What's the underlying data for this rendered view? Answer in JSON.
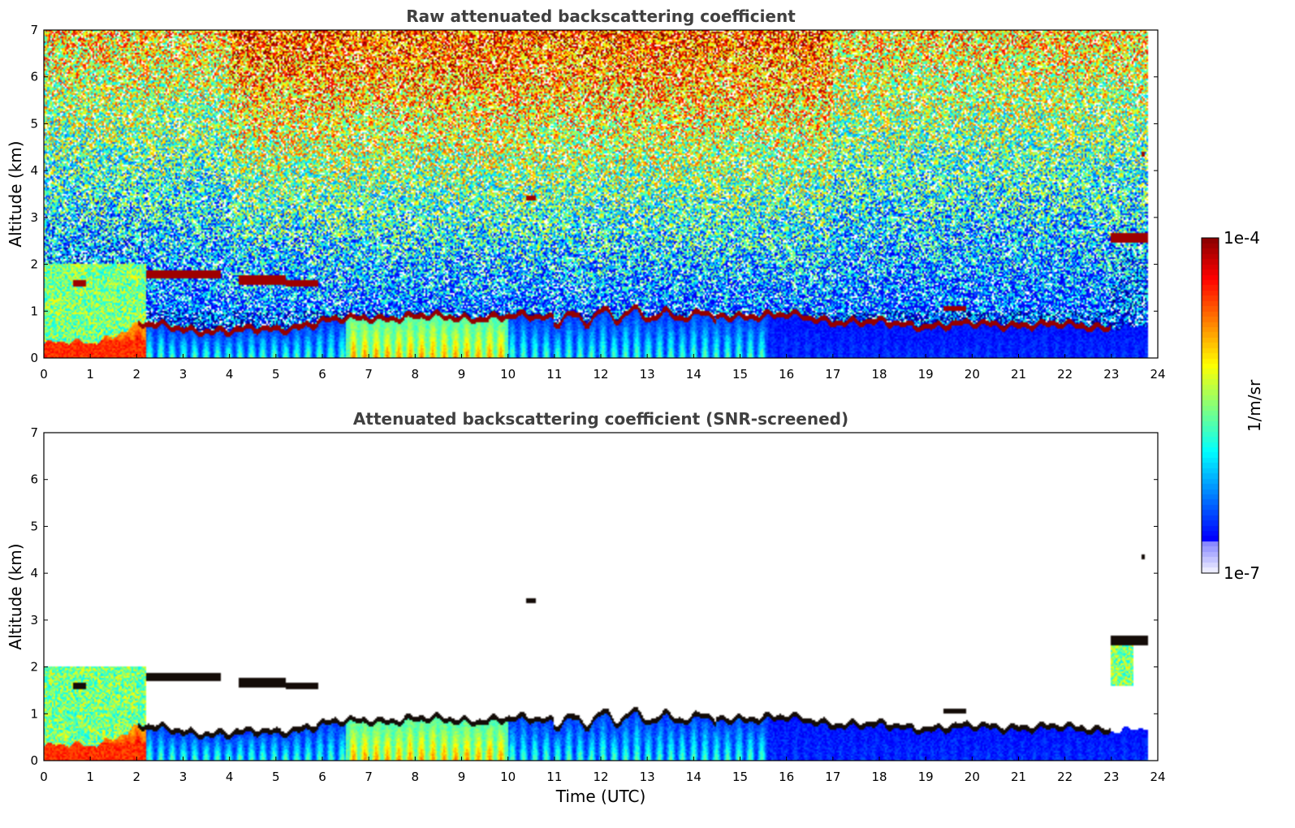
{
  "chart_data": [
    {
      "type": "heatmap",
      "title": "Raw attenuated backscattering coefficient",
      "xlabel": "",
      "ylabel": "Altitude (km)",
      "xlim": [
        0,
        24
      ],
      "ylim": [
        0,
        7
      ],
      "x_ticks": [
        "0",
        "1",
        "2",
        "3",
        "4",
        "5",
        "6",
        "7",
        "8",
        "9",
        "10",
        "11",
        "12",
        "13",
        "14",
        "15",
        "16",
        "17",
        "18",
        "19",
        "20",
        "21",
        "22",
        "23",
        "24"
      ],
      "y_ticks": [
        "0",
        "1",
        "2",
        "3",
        "4",
        "5",
        "6",
        "7"
      ],
      "screened": false,
      "grid": false
    },
    {
      "type": "heatmap",
      "title": "Attenuated backscattering coefficient (SNR-screened)",
      "xlabel": "Time (UTC)",
      "ylabel": "Altitude (km)",
      "xlim": [
        0,
        24
      ],
      "ylim": [
        0,
        7
      ],
      "x_ticks": [
        "0",
        "1",
        "2",
        "3",
        "4",
        "5",
        "6",
        "7",
        "8",
        "9",
        "10",
        "11",
        "12",
        "13",
        "14",
        "15",
        "16",
        "17",
        "18",
        "19",
        "20",
        "21",
        "22",
        "23",
        "24"
      ],
      "y_ticks": [
        "0",
        "1",
        "2",
        "3",
        "4",
        "5",
        "6",
        "7"
      ],
      "screened": true,
      "grid": false
    }
  ],
  "colorbar": {
    "label": "1/m/sr",
    "max_label": "1e-4",
    "min_label": "1e-7",
    "scale": "log",
    "colormap": "jet",
    "range": [
      1e-07,
      0.0001
    ]
  },
  "features": {
    "note_free": true,
    "cloud_base": [
      [
        0,
        0.3
      ],
      [
        1,
        0.3
      ],
      [
        2,
        0.7
      ],
      [
        3,
        0.6
      ],
      [
        4,
        0.55
      ],
      [
        5,
        0.6
      ],
      [
        6,
        0.75
      ],
      [
        7,
        0.85
      ],
      [
        8,
        0.85
      ],
      [
        9,
        0.85
      ],
      [
        10,
        0.85
      ],
      [
        11,
        0.85
      ],
      [
        12,
        0.85
      ],
      [
        13,
        0.95
      ],
      [
        14,
        0.85
      ],
      [
        15,
        0.9
      ],
      [
        16,
        0.88
      ],
      [
        17,
        0.78
      ],
      [
        18,
        0.72
      ],
      [
        19,
        0.68
      ],
      [
        20,
        0.69
      ],
      [
        21,
        0.71
      ],
      [
        22,
        0.67
      ],
      [
        23,
        0.65
      ]
    ],
    "elevated_layers": [
      {
        "t0": 0.6,
        "t1": 0.9,
        "z0": 1.5,
        "z1": 1.65
      },
      {
        "t0": 2.2,
        "t1": 3.8,
        "z0": 1.7,
        "z1": 1.85
      },
      {
        "t0": 4.2,
        "t1": 5.2,
        "z0": 1.55,
        "z1": 1.75
      },
      {
        "t0": 5.2,
        "t1": 5.9,
        "z0": 1.5,
        "z1": 1.65
      },
      {
        "t0": 10.4,
        "t1": 10.6,
        "z0": 3.35,
        "z1": 3.45
      },
      {
        "t0": 19.4,
        "t1": 19.9,
        "z0": 1.0,
        "z1": 1.1
      },
      {
        "t0": 23.0,
        "t1": 23.8,
        "z0": 2.45,
        "z1": 2.65
      },
      {
        "t0": 23.65,
        "t1": 23.75,
        "z0": 4.3,
        "z1": 4.4
      }
    ]
  },
  "colors": {
    "background": "#ffffff",
    "title": "#404040",
    "axis": "#000000"
  }
}
